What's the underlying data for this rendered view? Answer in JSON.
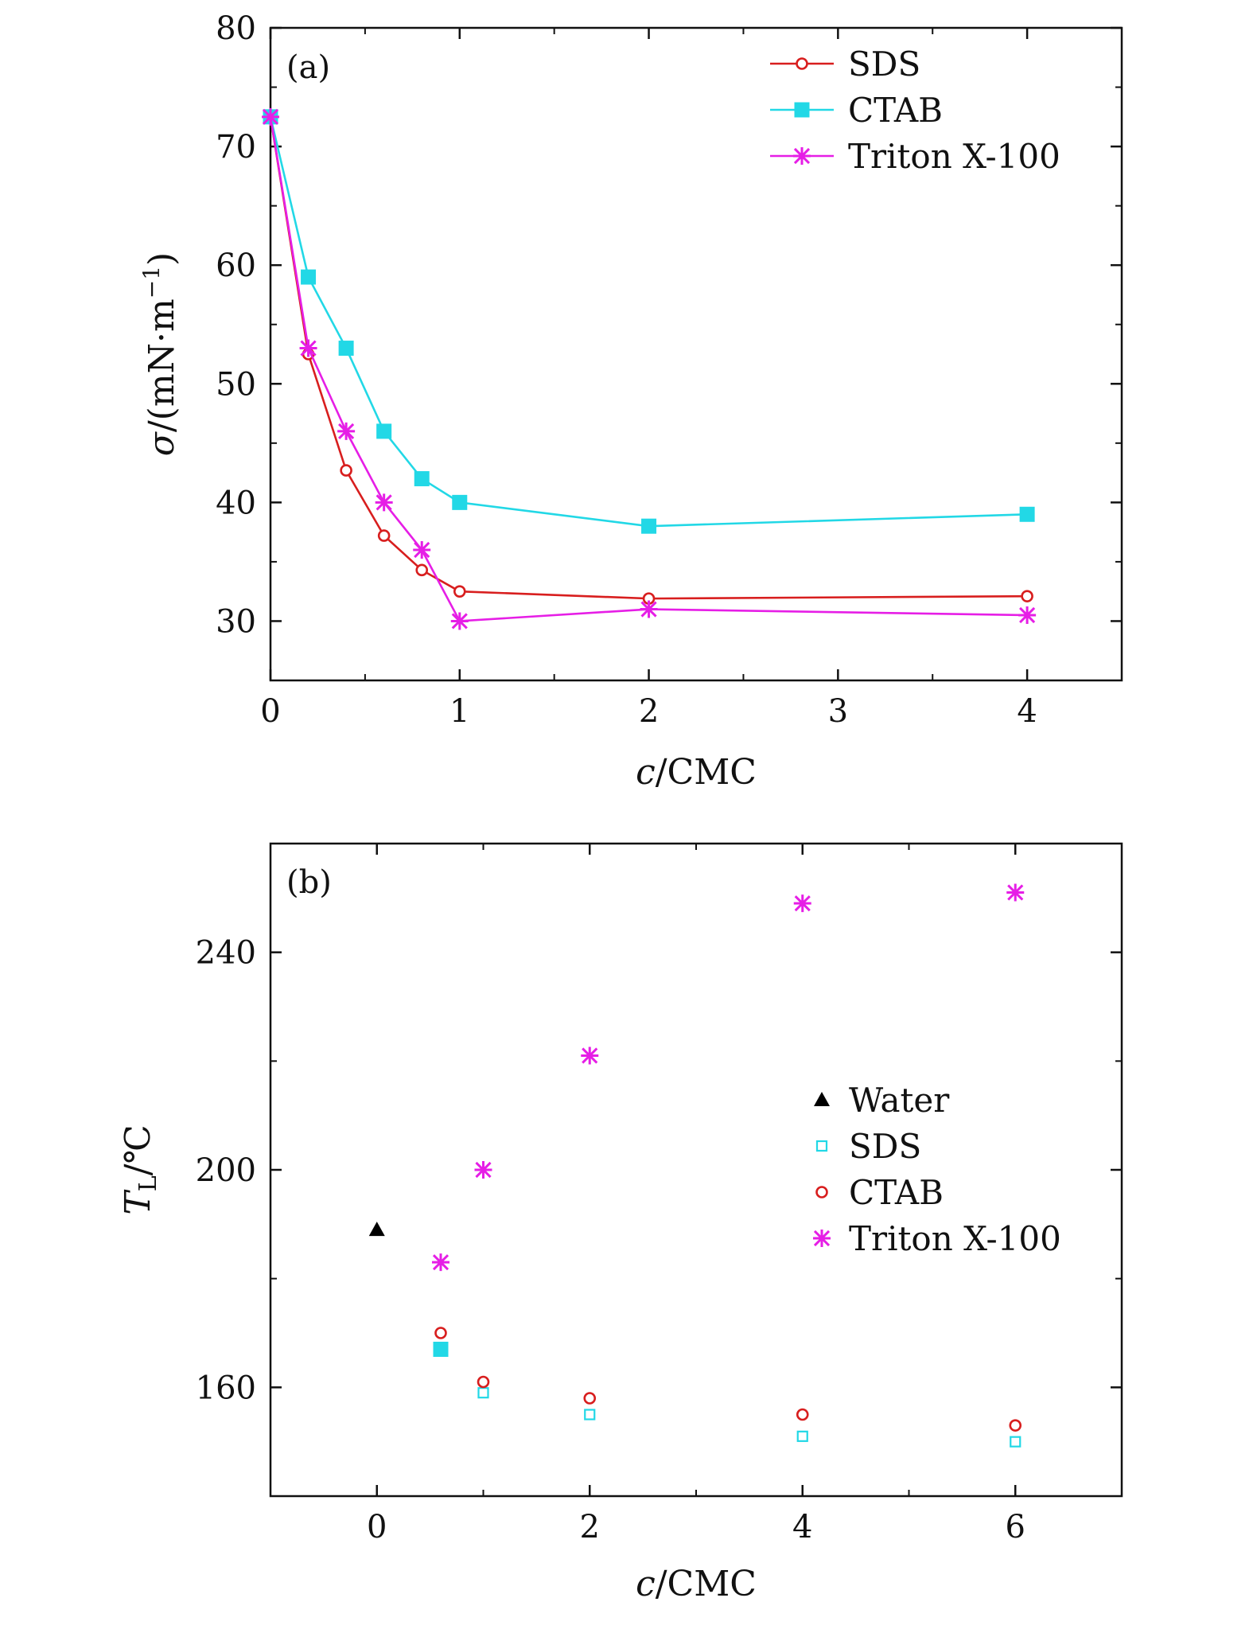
{
  "chart_data": [
    {
      "type": "line",
      "panel_label": "(a)",
      "xlabel_italic": "c",
      "xlabel_rest": "/CMC",
      "ylabel_italic": "σ",
      "ylabel_rest": "/(mN·m",
      "ylabel_sup": "−1",
      "ylabel_close": ")",
      "xlim": [
        0,
        4.5
      ],
      "ylim": [
        25,
        80
      ],
      "xticks": [
        0,
        1,
        2,
        3,
        4
      ],
      "xtick_labels": [
        "0",
        "1",
        "2",
        "3",
        "4"
      ],
      "yticks": [
        30,
        40,
        50,
        60,
        70,
        80
      ],
      "ytick_labels": [
        "30",
        "40",
        "50",
        "60",
        "70",
        "80"
      ],
      "legend_position": "top-right",
      "series": [
        {
          "name": "SDS",
          "color": "#d81e1e",
          "marker": "open-circle",
          "x": [
            0,
            0.2,
            0.4,
            0.6,
            0.8,
            1,
            2,
            4
          ],
          "y": [
            72.5,
            52.5,
            42.7,
            37.2,
            34.3,
            32.5,
            31.9,
            32.1
          ]
        },
        {
          "name": "CTAB",
          "color": "#22d8e6",
          "marker": "filled-square",
          "x": [
            0,
            0.2,
            0.4,
            0.6,
            0.8,
            1,
            2,
            4
          ],
          "y": [
            72.5,
            59,
            53,
            46,
            42,
            40,
            38,
            39
          ]
        },
        {
          "name": "Triton X-100",
          "color": "#e61ee6",
          "marker": "star",
          "x": [
            0,
            0.2,
            0.4,
            0.6,
            0.8,
            1,
            2,
            4
          ],
          "y": [
            72.5,
            53,
            46,
            40,
            36,
            30,
            31,
            30.5
          ]
        }
      ]
    },
    {
      "type": "scatter",
      "panel_label": "(b)",
      "xlabel_italic": "c",
      "xlabel_rest": "/CMC",
      "ylabel_italic": "T",
      "ylabel_sub": "L",
      "ylabel_rest": "/℃",
      "xlim": [
        -1,
        7
      ],
      "ylim": [
        140,
        260
      ],
      "xticks": [
        0,
        2,
        4,
        6
      ],
      "xtick_labels": [
        "0",
        "2",
        "4",
        "6"
      ],
      "yticks": [
        160,
        200,
        240
      ],
      "ytick_labels": [
        "160",
        "200",
        "240"
      ],
      "legend_position": "center-right",
      "series": [
        {
          "name": "Water",
          "color": "#000000",
          "marker": "filled-triangle",
          "x": [
            0
          ],
          "y": [
            189
          ]
        },
        {
          "name": "SDS",
          "color": "#22d8e6",
          "marker": "open-square",
          "x": [
            1,
            2,
            4,
            6
          ],
          "y": [
            159,
            155,
            151,
            150
          ]
        },
        {
          "name": "CTAB",
          "color": "#d81e1e",
          "marker": "open-circle",
          "x": [
            0.6,
            1,
            2,
            4,
            6
          ],
          "y": [
            170,
            161,
            158,
            155,
            153
          ]
        },
        {
          "name": "Triton X-100",
          "color": "#e61ee6",
          "marker": "star",
          "x": [
            0.6,
            1,
            2,
            4,
            6
          ],
          "y": [
            183,
            200,
            221,
            249,
            251
          ]
        }
      ],
      "extra_points": [
        {
          "series_name": "CTAB",
          "color": "#22d8e6",
          "marker": "filled-square",
          "x": 0.6,
          "y": 167
        }
      ]
    }
  ]
}
